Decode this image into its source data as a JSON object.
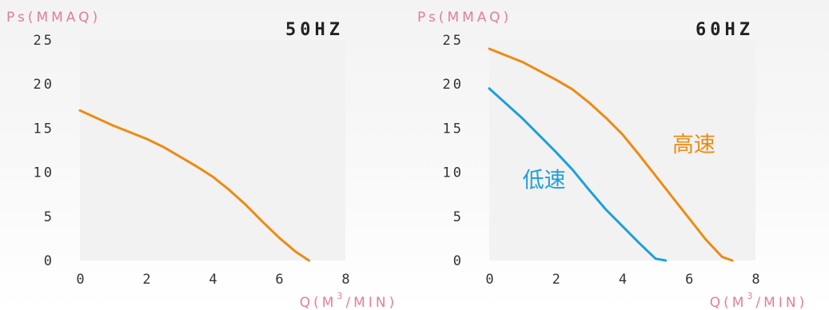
{
  "colors": {
    "high_speed": "#ee8a12",
    "low_speed": "#1d9fdb",
    "unit_text": "#e07e9a",
    "plot_bg": "#f2f2f2"
  },
  "chart_data": [
    {
      "type": "line",
      "title": "50HZ",
      "ylabel": "Ps(MMAQ)",
      "xlabel": "Q(M",
      "xlabel_superscript": "3",
      "xlabel_suffix": "/MIN)",
      "xlim": [
        0,
        8
      ],
      "ylim": [
        0,
        25
      ],
      "x_ticks": [
        "0",
        "2",
        "4",
        "6",
        "8"
      ],
      "y_ticks": [
        "0",
        "5",
        "10",
        "15",
        "20",
        "25"
      ],
      "grid": false,
      "series": [
        {
          "name": "",
          "color": "high_speed",
          "x": [
            0,
            1,
            2,
            2.5,
            3,
            3.5,
            4,
            4.5,
            5,
            5.5,
            6,
            6.5,
            6.9
          ],
          "y": [
            17,
            15.3,
            13.8,
            12.9,
            11.8,
            10.7,
            9.5,
            8.0,
            6.3,
            4.4,
            2.6,
            1.0,
            0
          ]
        }
      ]
    },
    {
      "type": "line",
      "title": "60HZ",
      "ylabel": "Ps(MMAQ)",
      "xlabel": "Q(M",
      "xlabel_superscript": "3",
      "xlabel_suffix": "/MIN)",
      "xlim": [
        0,
        8
      ],
      "ylim": [
        0,
        25
      ],
      "x_ticks": [
        "0",
        "2",
        "4",
        "6",
        "8"
      ],
      "y_ticks": [
        "0",
        "5",
        "10",
        "15",
        "20",
        "25"
      ],
      "grid": false,
      "series": [
        {
          "name": "高速",
          "color": "high_speed",
          "label_at": [
            5.5,
            12.3
          ],
          "x": [
            0,
            1,
            2,
            2.5,
            3,
            3.5,
            4,
            4.5,
            5,
            5.5,
            6,
            6.5,
            7,
            7.3
          ],
          "y": [
            24,
            22.5,
            20.5,
            19.4,
            17.9,
            16.2,
            14.3,
            12.0,
            9.6,
            7.2,
            4.8,
            2.4,
            0.4,
            0
          ]
        },
        {
          "name": "低速",
          "color": "low_speed",
          "label_at": [
            1.0,
            8.3
          ],
          "x": [
            0,
            0.5,
            1,
            1.5,
            2,
            2.5,
            3,
            3.5,
            4,
            4.5,
            5,
            5.3
          ],
          "y": [
            19.5,
            17.8,
            16.1,
            14.2,
            12.3,
            10.3,
            8.0,
            5.8,
            3.9,
            2.0,
            0.2,
            0
          ]
        }
      ]
    }
  ]
}
